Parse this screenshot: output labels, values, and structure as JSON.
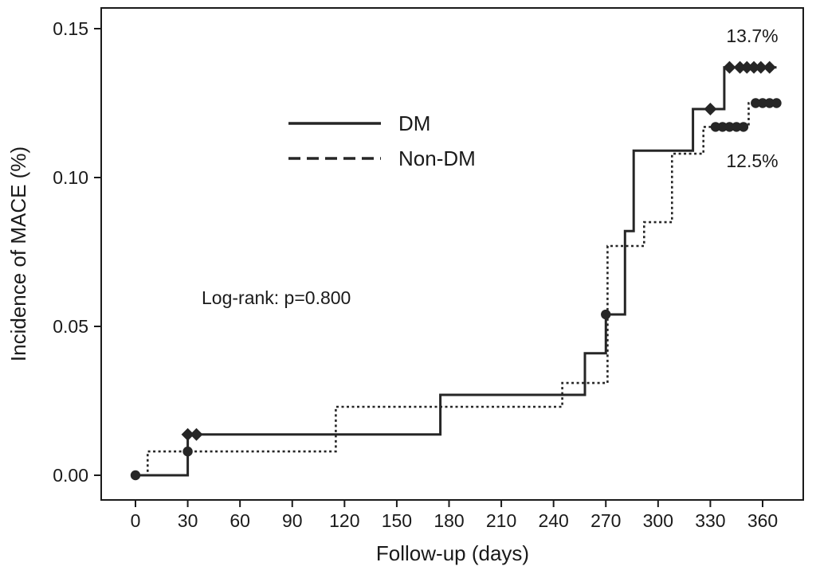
{
  "chart_data": {
    "type": "line",
    "subtype": "step-after-kaplan-meier-cumulative-incidence",
    "title": "",
    "xlabel": "Follow-up (days)",
    "ylabel": "Incidence of MACE (%)",
    "xlim": [
      0,
      370
    ],
    "ylim": [
      0,
      0.15
    ],
    "grid": false,
    "legend_position": "upper-center",
    "xticks": [
      0,
      30,
      60,
      90,
      120,
      150,
      180,
      210,
      240,
      270,
      300,
      330,
      360
    ],
    "yticks": [
      0,
      0.05,
      0.1,
      0.15
    ],
    "ytick_labels": [
      "0.00",
      "0.05",
      "0.10",
      "0.15"
    ],
    "series": [
      {
        "name": "DM",
        "line": "solid",
        "marker_shape": "diamond",
        "end_label": "13.7%",
        "end_x": 368,
        "points": [
          [
            0,
            0.0
          ],
          [
            30,
            0.0137
          ],
          [
            175,
            0.027
          ],
          [
            258,
            0.041
          ],
          [
            270,
            0.054
          ],
          [
            281,
            0.082
          ],
          [
            286,
            0.109
          ],
          [
            320,
            0.123
          ],
          [
            338,
            0.137
          ]
        ],
        "markers": [
          {
            "shape": "circle",
            "x": 0,
            "y": 0.0
          },
          {
            "shape": "diamond",
            "x": 30,
            "y": 0.0137
          },
          {
            "shape": "diamond",
            "x": 35,
            "y": 0.0137
          },
          {
            "shape": "circle",
            "x": 270,
            "y": 0.054
          },
          {
            "shape": "diamond",
            "x": 330,
            "y": 0.123
          },
          {
            "shape": "diamond",
            "x": 341,
            "y": 0.137
          },
          {
            "shape": "diamond",
            "x": 347,
            "y": 0.137
          },
          {
            "shape": "diamond",
            "x": 351,
            "y": 0.137
          },
          {
            "shape": "diamond",
            "x": 355,
            "y": 0.137
          },
          {
            "shape": "diamond",
            "x": 359,
            "y": 0.137
          },
          {
            "shape": "diamond",
            "x": 364,
            "y": 0.137
          }
        ]
      },
      {
        "name": "Non-DM",
        "line": "dotted",
        "marker_shape": "circle",
        "end_label": "12.5%",
        "end_x": 370,
        "points": [
          [
            0,
            0.0
          ],
          [
            7,
            0.008
          ],
          [
            115,
            0.023
          ],
          [
            245,
            0.031
          ],
          [
            271,
            0.077
          ],
          [
            292,
            0.085
          ],
          [
            308,
            0.108
          ],
          [
            326,
            0.117
          ],
          [
            352,
            0.125
          ]
        ],
        "markers": [
          {
            "shape": "circle",
            "x": 30,
            "y": 0.008
          },
          {
            "shape": "circle",
            "x": 333,
            "y": 0.117
          },
          {
            "shape": "circle",
            "x": 337,
            "y": 0.117
          },
          {
            "shape": "circle",
            "x": 341,
            "y": 0.117
          },
          {
            "shape": "circle",
            "x": 345,
            "y": 0.117
          },
          {
            "shape": "circle",
            "x": 349,
            "y": 0.117
          },
          {
            "shape": "circle",
            "x": 356,
            "y": 0.125
          },
          {
            "shape": "circle",
            "x": 360,
            "y": 0.125
          },
          {
            "shape": "circle",
            "x": 364,
            "y": 0.125
          },
          {
            "shape": "circle",
            "x": 368,
            "y": 0.125
          }
        ]
      }
    ],
    "annotations": [
      {
        "id": "logrank",
        "text": "Log-rank: p=0.800"
      },
      {
        "id": "dm-end",
        "text": "13.7%"
      },
      {
        "id": "nondm-end",
        "text": "12.5%"
      }
    ]
  },
  "legend": {
    "dm_label": "DM",
    "nondm_label": "Non-DM"
  },
  "annotations": {
    "logrank": "Log-rank: p=0.800",
    "dm_end_pct": "13.7%",
    "nondm_end_pct": "12.5%"
  },
  "colors": {
    "line": "#262626",
    "text": "#1a1a1a",
    "background": "#ffffff",
    "plot_border": "#1a1a1a"
  }
}
